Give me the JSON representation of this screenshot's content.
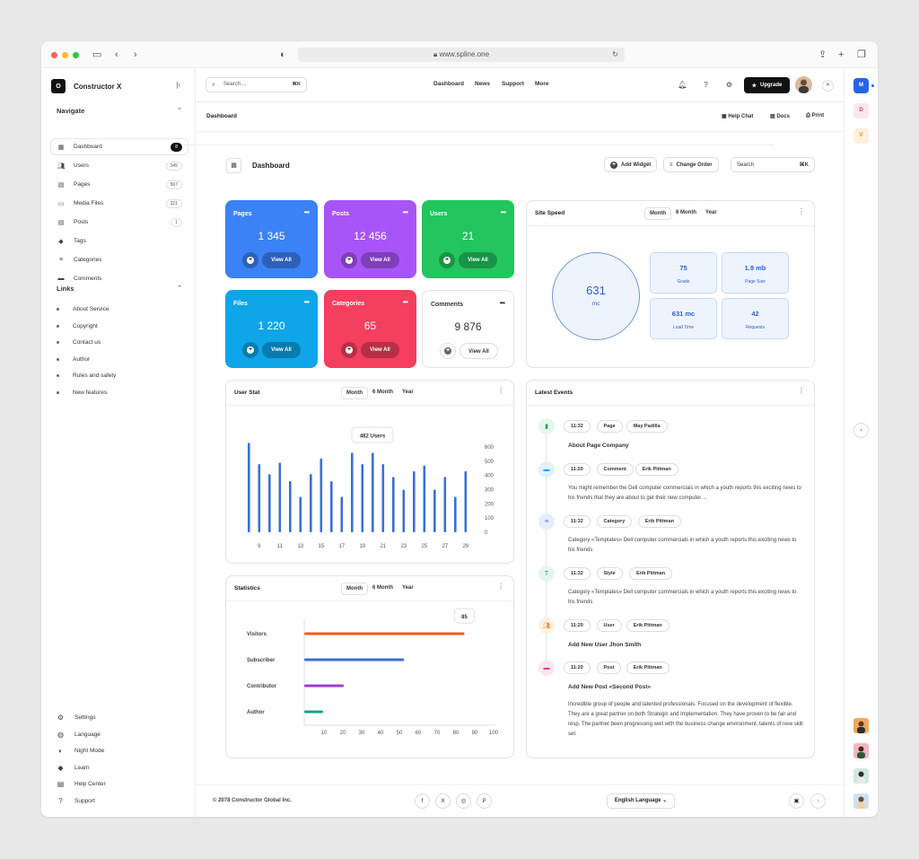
{
  "browser": {
    "url": "www.spline.one"
  },
  "brand": {
    "logo": "O",
    "name": "Constructor X"
  },
  "sidebar": {
    "navigate_title": "Navigate",
    "items": [
      {
        "label": "Dashboard",
        "count": "8"
      },
      {
        "label": "Users",
        "count": "345"
      },
      {
        "label": "Pages",
        "count": "567"
      },
      {
        "label": "Media Files",
        "count": "321"
      },
      {
        "label": "Posts",
        "count": "1"
      },
      {
        "label": "Tags",
        "count": ""
      },
      {
        "label": "Categories",
        "count": ""
      },
      {
        "label": "Comments",
        "count": ""
      }
    ],
    "links_title": "Links",
    "links": [
      "About Service",
      "Copyright",
      "Contact us",
      "Author",
      "Rules and safety",
      "New features"
    ],
    "bottom": [
      "Settings",
      "Language",
      "Night Mode",
      "Learn",
      "Help Center",
      "Support"
    ]
  },
  "topbar": {
    "search_placeholder": "Search ...",
    "kbd": "⌘K",
    "menu": [
      "Dashboard",
      "News",
      "Support",
      "More"
    ],
    "upgrade": "Upgrade"
  },
  "breadcrumb": {
    "title": "Dashboard",
    "actions": [
      "Help Chat",
      "Docs",
      "Print"
    ]
  },
  "rail": {
    "items": [
      "M",
      "D",
      "V"
    ]
  },
  "dashboard": {
    "title": "Dashboard",
    "add_widget": "Add Widget",
    "change_order": "Change Order",
    "search": "Search",
    "kbd": "⌘K"
  },
  "cards": [
    {
      "name": "Pages",
      "value": "1 345",
      "button": "View All",
      "color": "#3b82f6"
    },
    {
      "name": "Posts",
      "value": "12 456",
      "button": "View All",
      "color": "#a855f7"
    },
    {
      "name": "Users",
      "value": "21",
      "button": "View All",
      "color": "#22c55e"
    },
    {
      "name": "Files",
      "value": "1 220",
      "button": "View All",
      "color": "#0ea5e9"
    },
    {
      "name": "Categories",
      "value": "65",
      "button": "View All",
      "color": "#f43f5e"
    },
    {
      "name": "Comments",
      "value": "9 876",
      "button": "View All",
      "color": "#ffffff"
    }
  ],
  "site_speed": {
    "title": "Site Speed",
    "tabs": [
      "Month",
      "6 Month",
      "Year"
    ],
    "main_value": "631",
    "main_unit": "mc",
    "stats": [
      {
        "value": "75",
        "label": "Grade"
      },
      {
        "value": "1.9 mb",
        "label": "Page Size"
      },
      {
        "value": "631 mc",
        "label": "Load Time"
      },
      {
        "value": "42",
        "label": "Requests"
      }
    ]
  },
  "user_stat": {
    "title": "User Stat",
    "tabs": [
      "Month",
      "6 Month",
      "Year"
    ]
  },
  "statistics": {
    "title": "Statistics",
    "tabs": [
      "Month",
      "6 Month",
      "Year"
    ]
  },
  "chart_data": [
    {
      "type": "bar",
      "title": "User Stat",
      "tooltip": "482 Users",
      "x": [
        8,
        9,
        10,
        11,
        12,
        13,
        14,
        15,
        16,
        17,
        18,
        19,
        20,
        21,
        22,
        23,
        24,
        25,
        26,
        27,
        28,
        29
      ],
      "x_tick_labels": [
        "9",
        "11",
        "13",
        "15",
        "17",
        "19",
        "21",
        "23",
        "25",
        "27",
        "29"
      ],
      "values": [
        630,
        480,
        410,
        490,
        360,
        250,
        410,
        520,
        360,
        250,
        560,
        480,
        560,
        480,
        390,
        300,
        430,
        470,
        300,
        390,
        250,
        430
      ],
      "ylim": [
        0,
        600
      ],
      "y_ticks": [
        0,
        100,
        200,
        300,
        400,
        500,
        600
      ],
      "color": "#3b6fd8"
    },
    {
      "type": "bar",
      "orientation": "horizontal",
      "title": "Statistics",
      "tooltip": "85",
      "categories": [
        "Visitors",
        "Subscriber",
        "Contributor",
        "Author"
      ],
      "values": [
        85,
        53,
        21,
        10
      ],
      "colors": [
        "#f05a22",
        "#3b6fd8",
        "#9b3fd8",
        "#14a38b"
      ],
      "xlim": [
        0,
        100
      ],
      "x_ticks": [
        10,
        20,
        30,
        40,
        50,
        60,
        70,
        80,
        90,
        100
      ]
    }
  ],
  "events": {
    "title": "Latest Events",
    "items": [
      {
        "time": "11:32",
        "type": "Page",
        "user": "May Padilla",
        "title": "About Page Company",
        "text": "",
        "color": "#22a35a",
        "bg": "#e6f6ec"
      },
      {
        "time": "11:20",
        "type": "Comment",
        "user": "Erik Pittman",
        "title": "",
        "text": "You might remember the Dell computer commercials in which a youth reports this exciting news to his friends that they are about to get their new computer ...",
        "color": "#0ea5e9",
        "bg": "#e0f3fc"
      },
      {
        "time": "11:32",
        "type": "Category",
        "user": "Erik Pittman",
        "title": "",
        "text": "Category «Templates» Dell computer commercials in which a youth reports this exciting news to his friends",
        "color": "#3b6fd8",
        "bg": "#e6eefc"
      },
      {
        "time": "11:32",
        "type": "Style",
        "user": "Erik Pittman",
        "title": "",
        "text": "Category «Templates» Dell computer commercials in which a youth reports this exciting news to his friends",
        "color": "#22a35a",
        "bg": "#e6f6ec"
      },
      {
        "time": "11:20",
        "type": "User",
        "user": "Erik Pittman",
        "title": "Add New User Jhon Smith",
        "text": "",
        "color": "#f0922e",
        "bg": "#fdf1e3"
      },
      {
        "time": "11:20",
        "type": "Post",
        "user": "Erik Pittman",
        "title": "Add New Post «Second Post»",
        "text": "Incredible group of people and talented professionals. Focused on the development of flexible. They are a great partner on both Strategic and Implementation. They have proven to be fair and resp. The partner been progressing well with the business change environment, talents of new skill set.",
        "color": "#e83c8c",
        "bg": "#fce6f1"
      }
    ]
  },
  "footer": {
    "copyright": "© 2078 Constructor Global Inc.",
    "social": [
      "f",
      "X",
      "◎",
      "P"
    ],
    "language": "English Language"
  }
}
